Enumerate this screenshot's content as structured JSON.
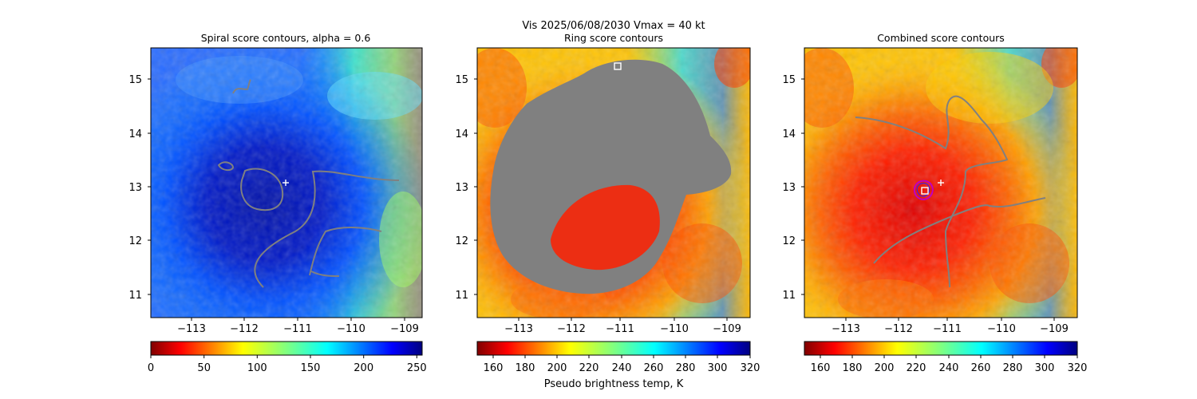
{
  "suptitle": {
    "line1": "Vis  2025/06/08/2030    Vmax = 40 kt"
  },
  "colors": {
    "contour": "#808080",
    "marker_white": "#ffffff",
    "combined_circle": "#c000c0",
    "combined_circle_inner": "#2020ff"
  },
  "chart_data": [
    {
      "type": "heatmap",
      "title": "Spiral score contours, alpha =  0.6",
      "colormap": "jet_r",
      "xlim": [
        -113.75,
        -108.45
      ],
      "ylim": [
        10.6,
        15.6
      ],
      "xticks": [
        "−113",
        "−112",
        "−111",
        "−110",
        "−109"
      ],
      "xtick_values": [
        -113,
        -112,
        -111,
        -110,
        -109
      ],
      "yticks": [
        "11",
        "12",
        "13",
        "14",
        "15"
      ],
      "ytick_values": [
        11,
        12,
        13,
        14,
        15
      ],
      "marker": {
        "type": "plus",
        "x": -111.2,
        "y": 13.1
      },
      "colorbar": {
        "ticks": [
          "0",
          "50",
          "100",
          "150",
          "200",
          "250"
        ],
        "tick_values": [
          0,
          50,
          100,
          150,
          200,
          250
        ],
        "range": [
          0,
          255
        ],
        "label": ""
      }
    },
    {
      "type": "heatmap",
      "title": "Ring score contours",
      "colormap": "jet_r",
      "xlim": [
        -113.75,
        -108.45
      ],
      "ylim": [
        10.6,
        15.6
      ],
      "xticks": [
        "−113",
        "−112",
        "−111",
        "−110",
        "−109"
      ],
      "xtick_values": [
        -113,
        -112,
        -111,
        -110,
        -109
      ],
      "yticks": [
        "11",
        "12",
        "13",
        "14",
        "15"
      ],
      "ytick_values": [
        11,
        12,
        13,
        14,
        15
      ],
      "marker": {
        "type": "square",
        "x": -111.0,
        "y": 15.25
      },
      "colorbar": {
        "ticks": [
          "160",
          "180",
          "200",
          "220",
          "240",
          "260",
          "280",
          "300",
          "320"
        ],
        "tick_values": [
          160,
          180,
          200,
          220,
          240,
          260,
          280,
          300,
          320
        ],
        "range": [
          150,
          320
        ],
        "label": "Pseudo brightness temp, K"
      }
    },
    {
      "type": "heatmap",
      "title": "Combined score contours",
      "colormap": "jet_r",
      "xlim": [
        -113.75,
        -108.45
      ],
      "ylim": [
        10.6,
        15.6
      ],
      "xticks": [
        "−113",
        "−112",
        "−111",
        "−110",
        "−109"
      ],
      "xtick_values": [
        -113,
        -112,
        -111,
        -110,
        -109
      ],
      "yticks": [
        "11",
        "12",
        "13",
        "14",
        "15"
      ],
      "ytick_values": [
        11,
        12,
        13,
        14,
        15
      ],
      "markers": [
        {
          "type": "plus",
          "x": -111.2,
          "y": 13.1
        },
        {
          "type": "square",
          "x": -111.5,
          "y": 12.93
        }
      ],
      "colorbar": {
        "ticks": [
          "160",
          "180",
          "200",
          "220",
          "240",
          "260",
          "280",
          "300",
          "320"
        ],
        "tick_values": [
          160,
          180,
          200,
          220,
          240,
          260,
          280,
          300,
          320
        ],
        "range": [
          150,
          320
        ],
        "label": ""
      }
    }
  ]
}
